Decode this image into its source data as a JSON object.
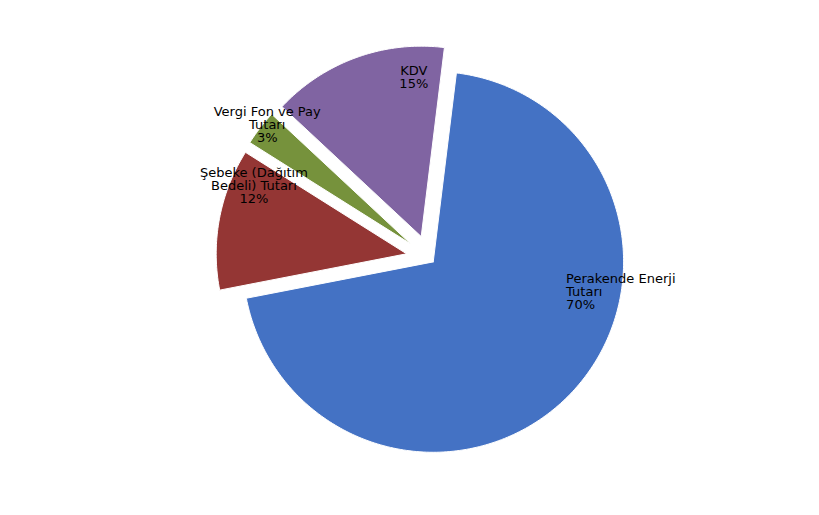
{
  "chart_data": {
    "type": "pie",
    "categories": [
      "Perakende Enerji\nTutarı",
      "Şebeke (Dağıtım\nBedeli) Tutarı",
      "Vergi Fon ve Pay\nTutarı",
      "KDV"
    ],
    "values": [
      70,
      12,
      3,
      15
    ],
    "value_labels": [
      "70%",
      "12%",
      "3%",
      "15%"
    ],
    "colors": [
      "#4472C4",
      "#943634",
      "#76923C",
      "#8064A2"
    ],
    "data_labels": true
  }
}
